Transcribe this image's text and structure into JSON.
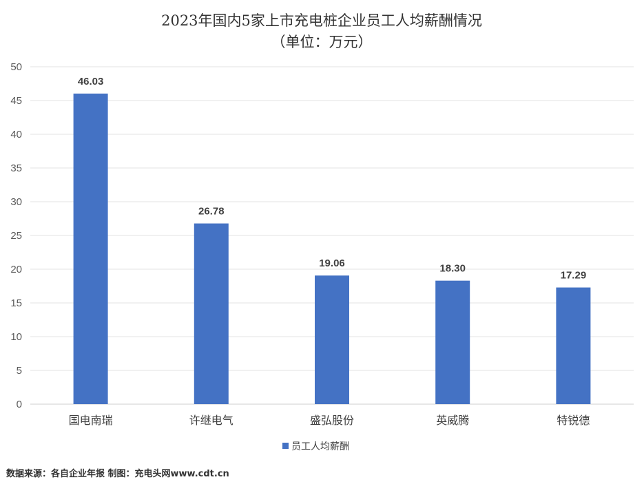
{
  "chart_data": {
    "type": "bar",
    "title": "2023年国内5家上市充电桩企业员工人均薪酬情况",
    "subtitle": "（单位：万元）",
    "categories": [
      "国电南瑞",
      "许继电气",
      "盛弘股份",
      "英威腾",
      "特锐德"
    ],
    "series": [
      {
        "name": "员工人均薪酬",
        "values": [
          46.03,
          26.78,
          19.06,
          18.3,
          17.29
        ],
        "labels": [
          "46.03",
          "26.78",
          "19.06",
          "18.30",
          "17.29"
        ],
        "color": "#4472c4"
      }
    ],
    "ylim": [
      0,
      50
    ],
    "yticks": [
      "0",
      "5",
      "10",
      "15",
      "20",
      "25",
      "30",
      "35",
      "40",
      "45",
      "50"
    ],
    "grid": true,
    "legend_position": "bottom"
  },
  "footer": {
    "source": "数据来源：各自企业年报 制图：充电头网www.cdt.cn"
  }
}
